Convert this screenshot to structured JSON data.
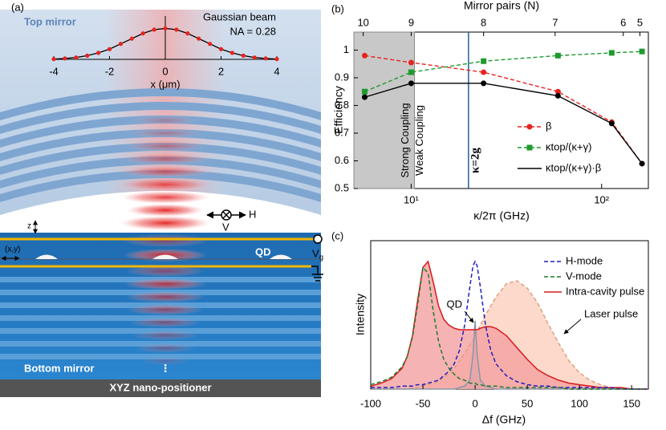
{
  "panel_labels": [
    "(a)",
    "(b)",
    "(c)"
  ],
  "diagram": {
    "top_mirror": "Top mirror",
    "bottom_mirror": "Bottom mirror",
    "positioner": "XYZ nano-positioner",
    "qd": "QD",
    "z": "z",
    "xy": "(x,y)",
    "h": "H",
    "v": "V",
    "vg": "V",
    "vg_sub": "g",
    "dots": "⋮"
  },
  "chart_data": [
    {
      "type": "line",
      "x": [
        -4,
        -3.6,
        -3.2,
        -2.8,
        -2.4,
        -2,
        -1.6,
        -1.2,
        -0.8,
        -0.4,
        0,
        0.4,
        0.8,
        1.2,
        1.6,
        2,
        2.4,
        2.8,
        3.2,
        3.6,
        4
      ],
      "values": [
        0.01,
        0.03,
        0.06,
        0.12,
        0.21,
        0.33,
        0.5,
        0.67,
        0.84,
        0.96,
        1,
        0.96,
        0.84,
        0.67,
        0.5,
        0.33,
        0.21,
        0.12,
        0.06,
        0.03,
        0.01
      ],
      "color": "#e8231f",
      "line_color": "#000000",
      "xlim": [
        -4,
        4
      ],
      "ylim": [
        0,
        1.4
      ],
      "xticks": [
        -4,
        -2,
        0,
        2,
        4
      ],
      "xlabel": "x (μm)",
      "annotations": [
        "Gaussian beam",
        "NA = 0.28"
      ]
    },
    {
      "type": "line",
      "xscale": "log",
      "xlim": [
        5,
        176
      ],
      "ylim": [
        0.5,
        1.065
      ],
      "xticks": [
        {
          "value": 10,
          "label": "10¹"
        },
        {
          "value": 100,
          "label": "10²"
        }
      ],
      "yticks": [
        0.5,
        0.6,
        0.7,
        0.8,
        0.9,
        1
      ],
      "xlabel": "κ/2π (GHz)",
      "ylabel": "Efficiency",
      "top_axis": {
        "label": "Mirror pairs (N)",
        "ticks": [
          {
            "value": 5.6,
            "label": "10"
          },
          {
            "value": 10,
            "label": "9"
          },
          {
            "value": 24,
            "label": "8"
          },
          {
            "value": 57,
            "label": "7"
          },
          {
            "value": 130,
            "label": "6"
          },
          {
            "value": 159,
            "label": "5"
          }
        ]
      },
      "x": [
        5.7,
        10,
        24,
        59,
        113,
        163
      ],
      "series": [
        {
          "name": "β",
          "color": "#e8231f",
          "dash": true,
          "marker": "circle",
          "values": [
            0.98,
            0.955,
            0.92,
            0.85,
            0.74,
            0.59
          ]
        },
        {
          "name": "κtop/(κ+γ)",
          "color": "#1e9a2e",
          "dash": true,
          "marker": "square",
          "values": [
            0.85,
            0.92,
            0.96,
            0.98,
            0.99,
            0.995
          ]
        },
        {
          "name": "κtop/(κ+γ)·β",
          "color": "#000000",
          "dash": false,
          "marker": "circle",
          "values": [
            0.83,
            0.88,
            0.88,
            0.835,
            0.735,
            0.59
          ]
        }
      ],
      "shade": {
        "xlim": [
          5,
          10.4
        ],
        "labels": [
          "Strong Coupling",
          "Weak Coupling"
        ]
      },
      "vline": {
        "x": 20,
        "label": "κ=2g",
        "color": "#1f5f9a"
      },
      "legend": "lower right"
    },
    {
      "type": "line",
      "xlim": [
        -100,
        166
      ],
      "ylim": [
        0,
        1
      ],
      "xticks": [
        -100,
        -50,
        0,
        50,
        100,
        150
      ],
      "xlabel": "Δf (GHz)",
      "ylabel": "Intensity",
      "x": [
        -100,
        -90,
        -80,
        -70,
        -65,
        -60,
        -55,
        -50,
        -45,
        -40,
        -35,
        -30,
        -25,
        -20,
        -15,
        -10,
        -5,
        -2,
        0,
        2,
        5,
        10,
        15,
        20,
        30,
        40,
        50,
        60,
        70,
        80,
        90,
        100,
        110,
        120,
        130,
        140,
        150,
        165
      ],
      "series": [
        {
          "name": "H-mode",
          "color": "#1f1fbf",
          "dash": true,
          "values": [
            0.01,
            0.01,
            0.01,
            0.02,
            0.02,
            0.02,
            0.03,
            0.03,
            0.04,
            0.05,
            0.06,
            0.09,
            0.12,
            0.17,
            0.26,
            0.43,
            0.69,
            0.83,
            0.86,
            0.83,
            0.69,
            0.43,
            0.26,
            0.17,
            0.09,
            0.05,
            0.03,
            0.02,
            0.02,
            0.01,
            0.01,
            0.01,
            0.01,
            0.01,
            0.01,
            0,
            0,
            0
          ]
        },
        {
          "name": "V-mode",
          "color": "#1e7a2e",
          "dash": true,
          "values": [
            0.03,
            0.05,
            0.08,
            0.15,
            0.22,
            0.35,
            0.57,
            0.82,
            0.78,
            0.52,
            0.32,
            0.2,
            0.14,
            0.1,
            0.07,
            0.06,
            0.04,
            0.04,
            0.04,
            0.03,
            0.03,
            0.02,
            0.02,
            0.02,
            0.01,
            0.01,
            0.01,
            0.01,
            0.01,
            0.01,
            0,
            0,
            0,
            0,
            0,
            0,
            0,
            0
          ]
        },
        {
          "name": "Intra-cavity pulse",
          "color": "#d7191c",
          "fill": "#f4a0a0",
          "dash": false,
          "values": [
            0.02,
            0.04,
            0.07,
            0.14,
            0.22,
            0.36,
            0.6,
            0.82,
            0.86,
            0.72,
            0.56,
            0.47,
            0.43,
            0.41,
            0.4,
            0.4,
            0.4,
            0.4,
            0.4,
            0.4,
            0.41,
            0.42,
            0.42,
            0.41,
            0.36,
            0.28,
            0.2,
            0.13,
            0.09,
            0.06,
            0.04,
            0.03,
            0.02,
            0.01,
            0.01,
            0.01,
            0,
            0
          ]
        },
        {
          "name": "QD",
          "color": "#8a96a8",
          "fill": "#a9b4c6",
          "dash": false,
          "legend": false,
          "values": [
            0,
            0,
            0,
            0,
            0,
            0,
            0,
            0,
            0,
            0,
            0,
            0,
            0,
            0,
            0.01,
            0.02,
            0.06,
            0.23,
            0.46,
            0.23,
            0.06,
            0.02,
            0.01,
            0,
            0,
            0,
            0,
            0,
            0,
            0,
            0,
            0,
            0,
            0,
            0,
            0,
            0,
            0
          ]
        },
        {
          "name": "Laser pulse",
          "color": "#e0a080",
          "fill": "#fbcfbd",
          "dash": true,
          "legend": false,
          "values": [
            0,
            0,
            0,
            0,
            0,
            0.01,
            0.01,
            0.02,
            0.03,
            0.04,
            0.05,
            0.08,
            0.1,
            0.14,
            0.19,
            0.24,
            0.3,
            0.33,
            0.36,
            0.39,
            0.43,
            0.5,
            0.56,
            0.62,
            0.71,
            0.73,
            0.68,
            0.58,
            0.44,
            0.31,
            0.19,
            0.11,
            0.06,
            0.03,
            0.01,
            0.01,
            0,
            0
          ]
        }
      ],
      "legend": "upper right"
    }
  ]
}
